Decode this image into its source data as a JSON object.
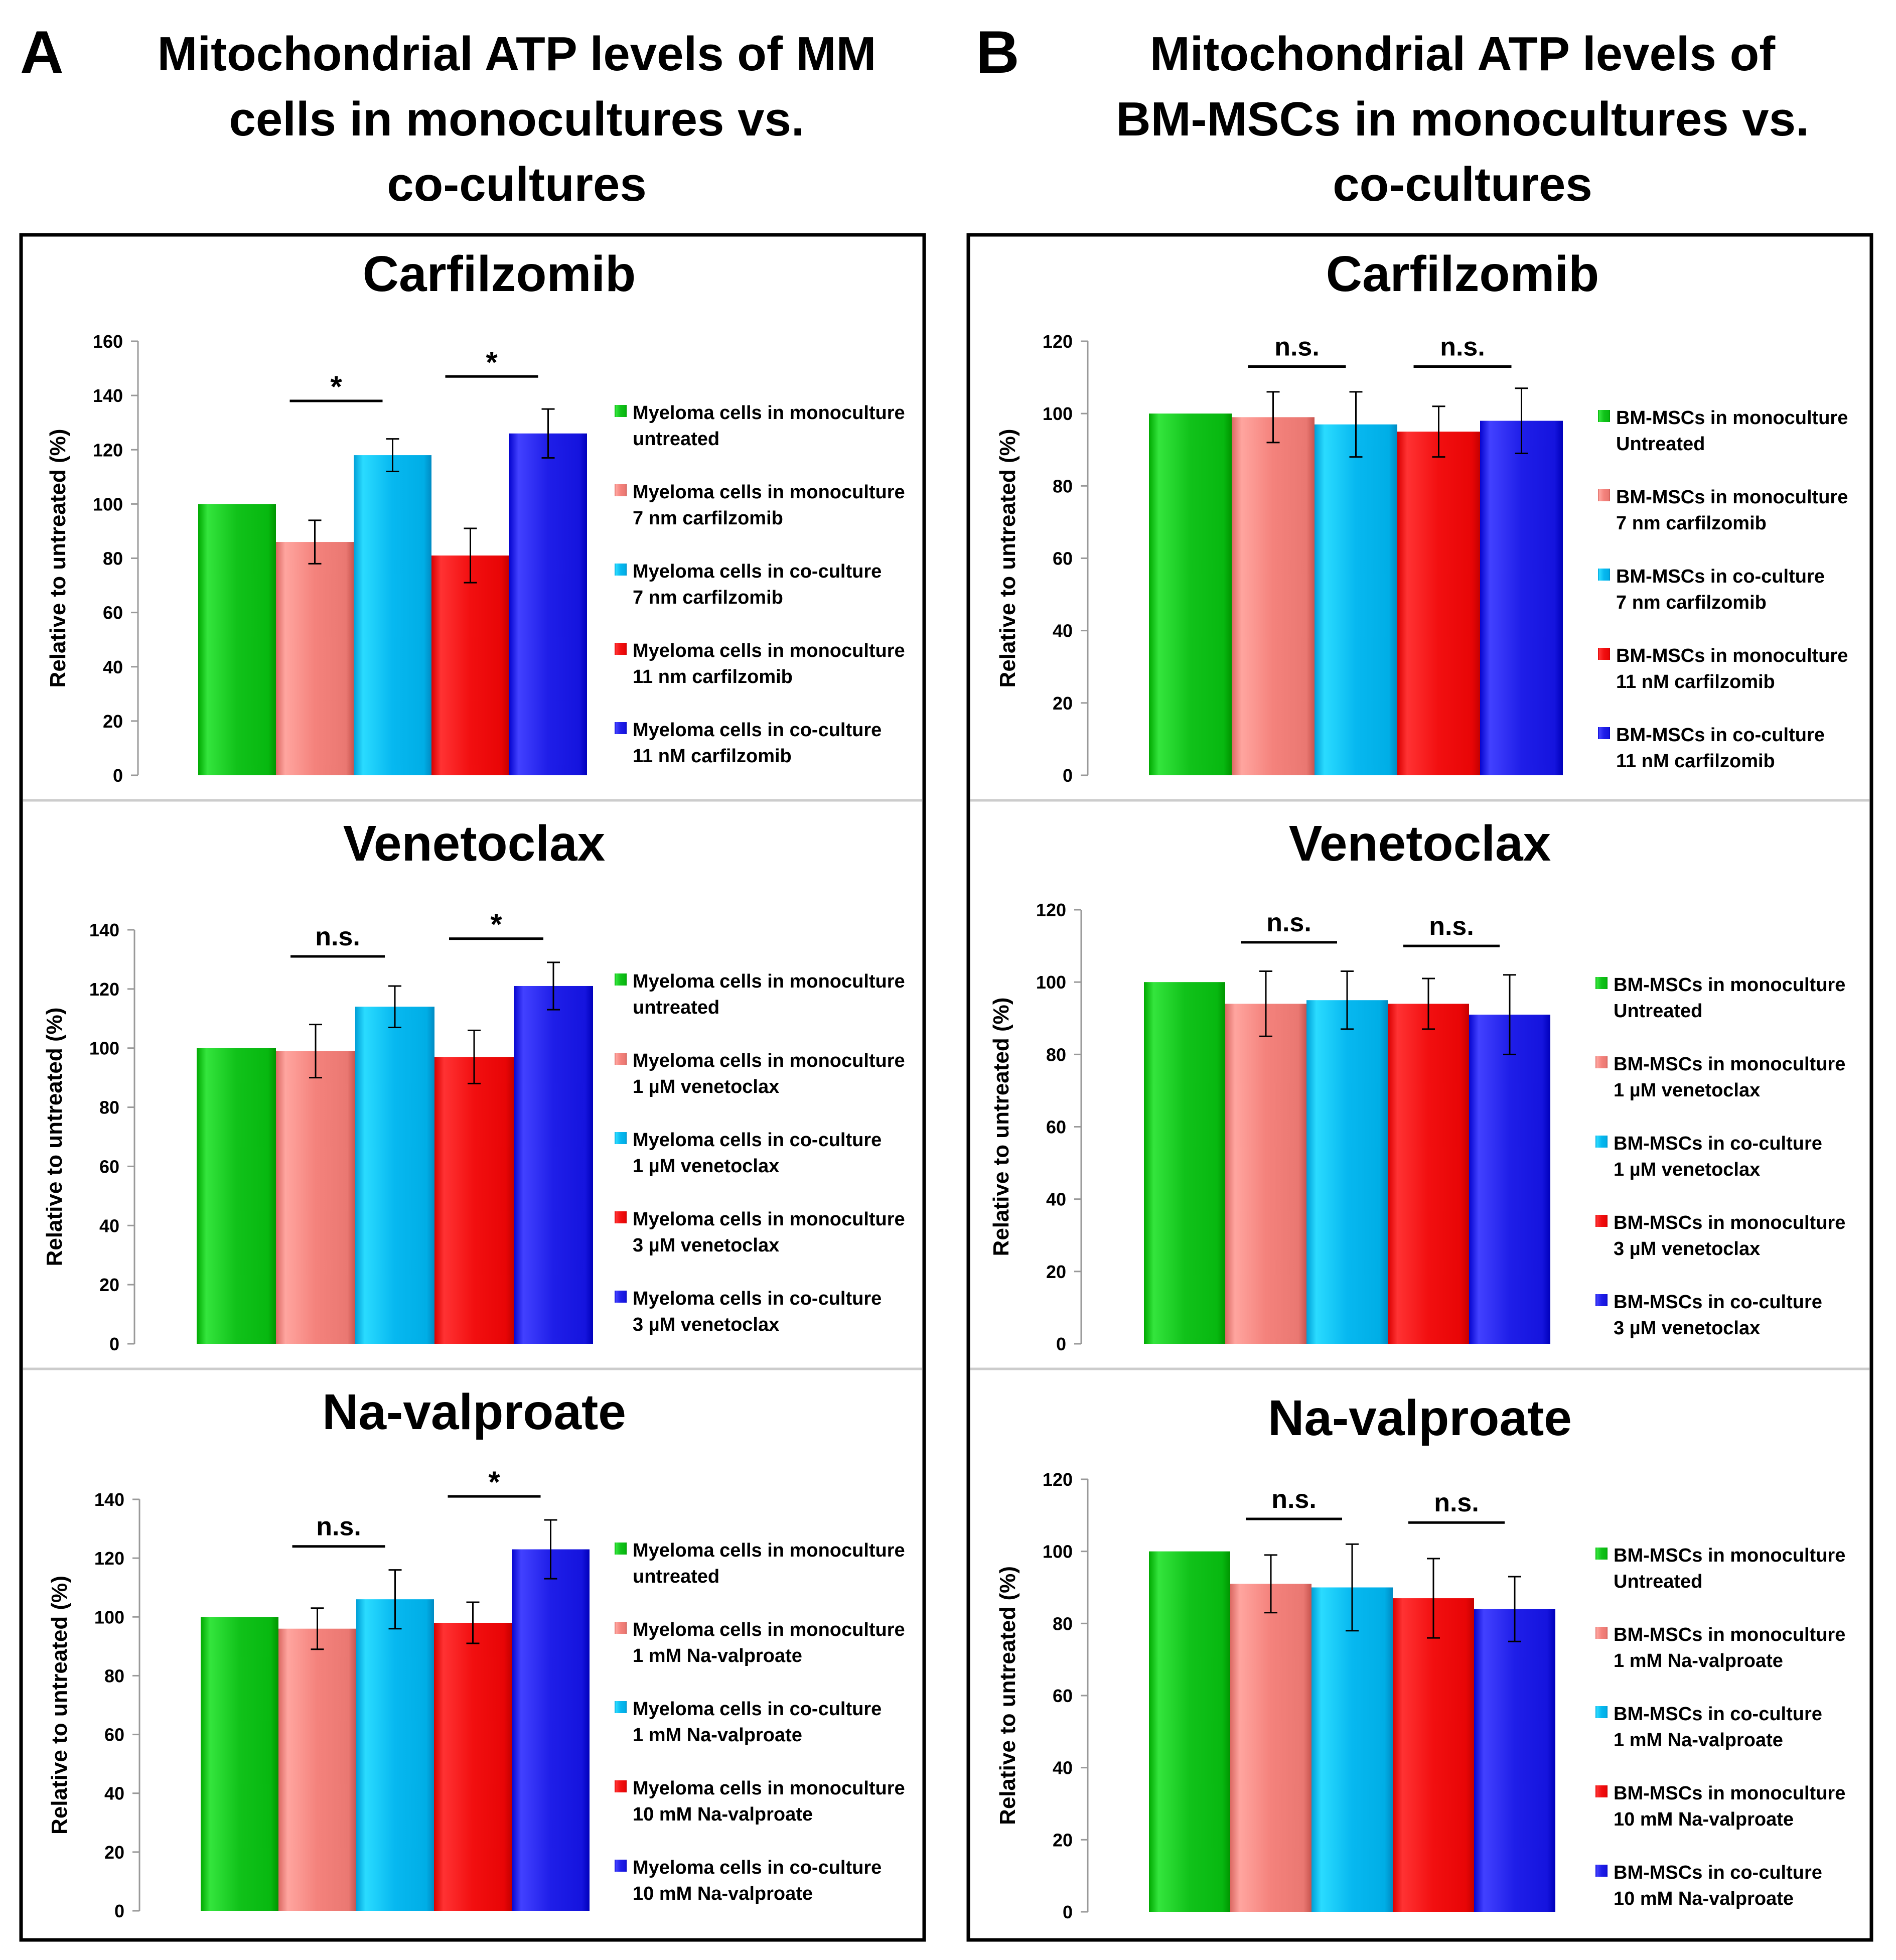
{
  "panels": [
    {
      "letter": "A",
      "title_lines": [
        "Mitochondrial ATP levels of MM",
        "cells in monocultures vs.",
        "co-cultures"
      ],
      "colors": [
        "#11c21a",
        "#f4827c",
        "#07b8f0",
        "#f20f10",
        "#1f1ee8"
      ]
    },
    {
      "letter": "B",
      "title_lines": [
        "Mitochondrial ATP levels of",
        "BM-MSCs in monocultures vs.",
        "co-cultures"
      ],
      "colors": [
        "#11c21a",
        "#f4827c",
        "#07b8f0",
        "#f20f10",
        "#1f1ee8"
      ]
    }
  ],
  "chart_data": [
    {
      "panel": "A",
      "type": "bar",
      "title": "Carfilzomib",
      "ylabel": "Relative to untreated (%)",
      "ylim": [
        0,
        160
      ],
      "yticks": [
        0,
        20,
        40,
        60,
        80,
        100,
        120,
        140,
        160
      ],
      "series": [
        {
          "name": "Myeloma cells in monoculture untreated",
          "legend_lines": [
            "Myeloma cells in monoculture",
            "untreated"
          ],
          "value": 100,
          "error": 0
        },
        {
          "name": "Myeloma cells in monoculture 7 nm carfilzomib",
          "legend_lines": [
            "Myeloma cells in monoculture",
            "7 nm carfilzomib"
          ],
          "value": 86,
          "error": 8
        },
        {
          "name": "Myeloma cells in co-culture 7 nm carfilzomib",
          "legend_lines": [
            "Myeloma cells in co-culture",
            "7 nm carfilzomib"
          ],
          "value": 118,
          "error": 6
        },
        {
          "name": "Myeloma cells in monoculture 11 nm carfilzomib",
          "legend_lines": [
            "Myeloma cells in monoculture",
            "11 nm carfilzomib"
          ],
          "value": 81,
          "error": 10
        },
        {
          "name": "Myeloma cells in co-culture 11 nM carfilzomib",
          "legend_lines": [
            "Myeloma cells in co-culture",
            "11 nM carfilzomib"
          ],
          "value": 126,
          "error": 9
        }
      ],
      "significance": [
        {
          "between": [
            1,
            2
          ],
          "label": "*",
          "level": 138
        },
        {
          "between": [
            3,
            4
          ],
          "label": "*",
          "level": 147
        }
      ]
    },
    {
      "panel": "A",
      "type": "bar",
      "title": "Venetoclax",
      "ylabel": "Relative to untreated (%)",
      "ylim": [
        0,
        140
      ],
      "yticks": [
        0,
        20,
        40,
        60,
        80,
        100,
        120,
        140
      ],
      "series": [
        {
          "name": "Myeloma cells in monoculture untreated",
          "legend_lines": [
            "Myeloma cells in monoculture",
            "untreated"
          ],
          "value": 100,
          "error": 0
        },
        {
          "name": "Myeloma cells in monoculture 1 µM venetoclax",
          "legend_lines": [
            "Myeloma cells in monoculture",
            "1 µM venetoclax"
          ],
          "value": 99,
          "error": 9
        },
        {
          "name": "Myeloma cells in co-culture 1 µM venetoclax",
          "legend_lines": [
            "Myeloma cells in co-culture",
            "1 µM venetoclax"
          ],
          "value": 114,
          "error": 7
        },
        {
          "name": "Myeloma cells in monoculture 3 µM venetoclax",
          "legend_lines": [
            "Myeloma cells in monoculture",
            "3 µM venetoclax"
          ],
          "value": 97,
          "error": 9
        },
        {
          "name": "Myeloma cells in co-culture 3 µM venetoclax",
          "legend_lines": [
            "Myeloma cells in co-culture",
            "3 µM venetoclax"
          ],
          "value": 121,
          "error": 8
        }
      ],
      "significance": [
        {
          "between": [
            1,
            2
          ],
          "label": "n.s.",
          "level": 131
        },
        {
          "between": [
            3,
            4
          ],
          "label": "*",
          "level": 137
        }
      ]
    },
    {
      "panel": "A",
      "type": "bar",
      "title": "Na-valproate",
      "ylabel": "Relative to untreated (%)",
      "ylim": [
        0,
        140
      ],
      "yticks": [
        0,
        20,
        40,
        60,
        80,
        100,
        120,
        140
      ],
      "series": [
        {
          "name": "Myeloma cells in monoculture untreated",
          "legend_lines": [
            "Myeloma cells in monoculture",
            "untreated"
          ],
          "value": 100,
          "error": 0
        },
        {
          "name": "Myeloma cells in monoculture 1 mM Na-valproate",
          "legend_lines": [
            "Myeloma cells in monoculture",
            "1 mM Na-valproate"
          ],
          "value": 96,
          "error": 7
        },
        {
          "name": "Myeloma cells in co-culture 1 mM Na-valproate",
          "legend_lines": [
            "Myeloma cells in co-culture",
            "1 mM Na-valproate"
          ],
          "value": 106,
          "error": 10
        },
        {
          "name": "Myeloma cells in monoculture 10 mM Na-valproate",
          "legend_lines": [
            "Myeloma cells in monoculture",
            "10 mM Na-valproate"
          ],
          "value": 98,
          "error": 7
        },
        {
          "name": "Myeloma cells in co-culture 10 mM Na-valproate",
          "legend_lines": [
            "Myeloma cells in co-culture",
            "10 mM Na-valproate"
          ],
          "value": 123,
          "error": 10
        }
      ],
      "significance": [
        {
          "between": [
            1,
            2
          ],
          "label": "n.s.",
          "level": 124
        },
        {
          "between": [
            3,
            4
          ],
          "label": "*",
          "level": 141
        }
      ]
    },
    {
      "panel": "B",
      "type": "bar",
      "title": "Carfilzomib",
      "ylabel": "Relative to untreated (%)",
      "ylim": [
        0,
        120
      ],
      "yticks": [
        0,
        20,
        40,
        60,
        80,
        100,
        120
      ],
      "series": [
        {
          "name": "BM-MSCs in monoculture Untreated",
          "legend_lines": [
            "BM-MSCs in monoculture",
            "Untreated"
          ],
          "value": 100,
          "error": 0
        },
        {
          "name": "BM-MSCs in monoculture 7 nm carfilzomib",
          "legend_lines": [
            "BM-MSCs in monoculture",
            "7 nm carfilzomib"
          ],
          "value": 99,
          "error": 7
        },
        {
          "name": "BM-MSCs in co-culture 7 nm carfilzomib",
          "legend_lines": [
            "BM-MSCs in co-culture",
            "7 nm carfilzomib"
          ],
          "value": 97,
          "error": 9
        },
        {
          "name": "BM-MSCs in monoculture 11 nM carfilzomib",
          "legend_lines": [
            "BM-MSCs in monoculture",
            "11 nM carfilzomib"
          ],
          "value": 95,
          "error": 7
        },
        {
          "name": "BM-MSCs in co-culture 11 nM carfilzomib",
          "legend_lines": [
            "BM-MSCs in co-culture",
            "11 nM carfilzomib"
          ],
          "value": 98,
          "error": 9
        }
      ],
      "significance": [
        {
          "between": [
            1,
            2
          ],
          "label": "n.s.",
          "level": 113
        },
        {
          "between": [
            3,
            4
          ],
          "label": "n.s.",
          "level": 113
        }
      ]
    },
    {
      "panel": "B",
      "type": "bar",
      "title": "Venetoclax",
      "ylabel": "Relative to untreated (%)",
      "ylim": [
        0,
        120
      ],
      "yticks": [
        0,
        20,
        40,
        60,
        80,
        100,
        120
      ],
      "series": [
        {
          "name": "BM-MSCs in monoculture Untreated",
          "legend_lines": [
            "BM-MSCs in monoculture",
            "Untreated"
          ],
          "value": 100,
          "error": 0
        },
        {
          "name": "BM-MSCs in monoculture 1 µM venetoclax",
          "legend_lines": [
            "BM-MSCs in monoculture",
            "1 µM venetoclax"
          ],
          "value": 94,
          "error": 9
        },
        {
          "name": "BM-MSCs in co-culture 1 µM venetoclax",
          "legend_lines": [
            "BM-MSCs in co-culture",
            "1 µM venetoclax"
          ],
          "value": 95,
          "error": 8
        },
        {
          "name": "BM-MSCs in monoculture 3 µM venetoclax",
          "legend_lines": [
            "BM-MSCs in monoculture",
            "3 µM venetoclax"
          ],
          "value": 94,
          "error": 7
        },
        {
          "name": "BM-MSCs in co-culture 3 µM venetoclax",
          "legend_lines": [
            "BM-MSCs in co-culture",
            "3 µM venetoclax"
          ],
          "value": 91,
          "error": 11
        }
      ],
      "significance": [
        {
          "between": [
            1,
            2
          ],
          "label": "n.s.",
          "level": 111
        },
        {
          "between": [
            3,
            4
          ],
          "label": "n.s.",
          "level": 110
        }
      ]
    },
    {
      "panel": "B",
      "type": "bar",
      "title": "Na-valproate",
      "ylabel": "Relative to untreated (%)",
      "ylim": [
        0,
        120
      ],
      "yticks": [
        0,
        20,
        40,
        60,
        80,
        100,
        120
      ],
      "series": [
        {
          "name": "BM-MSCs in monoculture Untreated",
          "legend_lines": [
            "BM-MSCs in monoculture",
            "Untreated"
          ],
          "value": 100,
          "error": 0
        },
        {
          "name": "BM-MSCs in monoculture 1 mM Na-valproate",
          "legend_lines": [
            "BM-MSCs in monoculture",
            "1 mM Na-valproate"
          ],
          "value": 91,
          "error": 8
        },
        {
          "name": "BM-MSCs in co-culture 1 mM Na-valproate",
          "legend_lines": [
            "BM-MSCs in co-culture",
            "1 mM Na-valproate"
          ],
          "value": 90,
          "error": 12
        },
        {
          "name": "BM-MSCs in monoculture 10 mM Na-valproate",
          "legend_lines": [
            "BM-MSCs in monoculture",
            "10 mM Na-valproate"
          ],
          "value": 87,
          "error": 11
        },
        {
          "name": "BM-MSCs in co-culture 10 mM Na-valproate",
          "legend_lines": [
            "BM-MSCs in co-culture",
            "10 mM Na-valproate"
          ],
          "value": 84,
          "error": 9
        }
      ],
      "significance": [
        {
          "between": [
            1,
            2
          ],
          "label": "n.s.",
          "level": 109
        },
        {
          "between": [
            3,
            4
          ],
          "label": "n.s.",
          "level": 108
        }
      ]
    }
  ]
}
